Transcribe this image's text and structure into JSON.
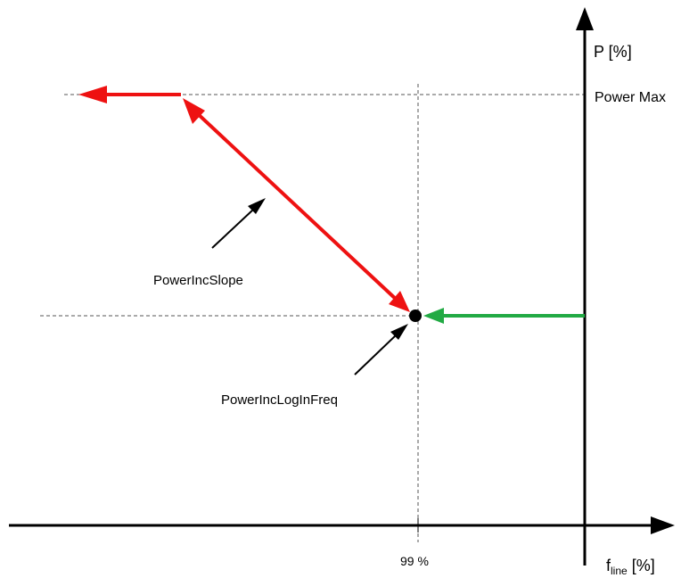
{
  "axes": {
    "y_label": "P [%]",
    "x_label_main": "f",
    "x_label_sub": "line",
    "x_label_unit": " [%]"
  },
  "labels": {
    "power_max": "Power Max",
    "x_tick_99": "99 %",
    "power_inc_slope": "PowerIncSlope",
    "power_inc_login_freq": "PowerIncLogInFreq"
  },
  "colors": {
    "red": "#ee1111",
    "green": "#22aa44",
    "black": "#000000",
    "dashed": "#555555"
  }
}
